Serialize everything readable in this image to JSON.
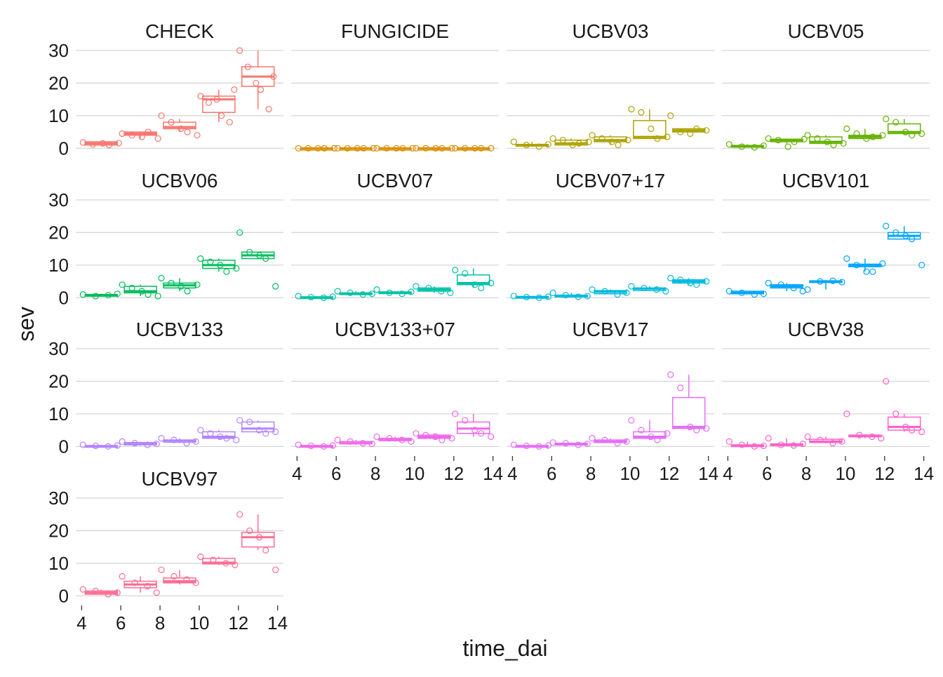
{
  "chart_data": {
    "type": "boxplot",
    "xlabel": "time_dai",
    "ylabel": "sev",
    "x_ticks": [
      4,
      6,
      8,
      10,
      12,
      14
    ],
    "y_ticks": [
      0,
      10,
      20,
      30
    ],
    "xlim": [
      3.7,
      14.3
    ],
    "ylim": [
      -2.5,
      31.5
    ],
    "grid": "horizontal",
    "legend": "none",
    "panels": [
      {
        "title": "CHECK",
        "color": "#F8766D",
        "groups": [
          {
            "x": 5,
            "min": 1,
            "q1": 1,
            "median": 1.5,
            "q3": 2,
            "max": 2,
            "points": [
              1.8,
              1.2,
              1.5,
              1.0,
              1.6
            ]
          },
          {
            "x": 7,
            "min": 3,
            "q1": 4,
            "median": 4.5,
            "q3": 5,
            "max": 5,
            "points": [
              4.5,
              4.0,
              3.5,
              5.0,
              3.0
            ]
          },
          {
            "x": 9,
            "min": 5,
            "q1": 6,
            "median": 6.5,
            "q3": 8,
            "max": 9,
            "points": [
              10,
              8,
              6,
              5,
              4
            ]
          },
          {
            "x": 11,
            "min": 8,
            "q1": 11,
            "median": 15,
            "q3": 16,
            "max": 18,
            "points": [
              16,
              14,
              15,
              10,
              8,
              18
            ]
          },
          {
            "x": 13,
            "min": 12,
            "q1": 19,
            "median": 22,
            "q3": 25,
            "max": 30,
            "points": [
              30,
              25,
              20,
              18,
              12,
              22
            ]
          }
        ]
      },
      {
        "title": "FUNGICIDE",
        "color": "#DB8E00",
        "groups": [
          {
            "x": 5,
            "min": 0,
            "q1": 0,
            "median": 0,
            "q3": 0,
            "max": 0,
            "points": [
              0,
              0,
              0,
              0,
              0
            ]
          },
          {
            "x": 7,
            "min": 0,
            "q1": 0,
            "median": 0,
            "q3": 0,
            "max": 0,
            "points": [
              0,
              0,
              0,
              0,
              0
            ]
          },
          {
            "x": 9,
            "min": 0,
            "q1": 0,
            "median": 0,
            "q3": 0,
            "max": 0,
            "points": [
              0,
              0,
              0,
              0,
              0
            ]
          },
          {
            "x": 11,
            "min": 0,
            "q1": 0,
            "median": 0,
            "q3": 0,
            "max": 0,
            "points": [
              0,
              0,
              0,
              0,
              0
            ]
          },
          {
            "x": 13,
            "min": 0,
            "q1": 0,
            "median": 0,
            "q3": 0,
            "max": 0,
            "points": [
              0,
              0,
              0,
              0,
              0
            ]
          }
        ]
      },
      {
        "title": "UCBV03",
        "color": "#AEA200",
        "groups": [
          {
            "x": 5,
            "min": 0.5,
            "q1": 0.7,
            "median": 1,
            "q3": 1.2,
            "max": 2,
            "points": [
              2,
              1,
              0.5,
              1.2
            ]
          },
          {
            "x": 7,
            "min": 1,
            "q1": 1,
            "median": 1.5,
            "q3": 2.5,
            "max": 3,
            "points": [
              3,
              2.5,
              1,
              1.5,
              2
            ]
          },
          {
            "x": 9,
            "min": 1,
            "q1": 2,
            "median": 2.5,
            "q3": 3.5,
            "max": 4,
            "points": [
              4,
              3,
              2,
              1,
              2.5
            ]
          },
          {
            "x": 11,
            "min": 3,
            "q1": 3,
            "median": 3.5,
            "q3": 8.5,
            "max": 12,
            "points": [
              12,
              11,
              6,
              3,
              3.5
            ]
          },
          {
            "x": 13,
            "min": 5,
            "q1": 5,
            "median": 5.5,
            "q3": 6,
            "max": 6,
            "points": [
              10,
              5,
              4.5,
              6,
              5.5
            ]
          }
        ]
      },
      {
        "title": "UCBV05",
        "color": "#64B200",
        "groups": [
          {
            "x": 5,
            "min": 0.3,
            "q1": 0.4,
            "median": 0.6,
            "q3": 0.9,
            "max": 1.2,
            "points": [
              1.2,
              0.5,
              0.3,
              0.8
            ]
          },
          {
            "x": 7,
            "min": 1.5,
            "q1": 2,
            "median": 2.5,
            "q3": 2.8,
            "max": 3,
            "points": [
              3,
              2.5,
              0.5,
              2,
              2.8
            ]
          },
          {
            "x": 9,
            "min": 1,
            "q1": 1.5,
            "median": 2,
            "q3": 3.5,
            "max": 4,
            "points": [
              4,
              3,
              2,
              1,
              1.5
            ]
          },
          {
            "x": 11,
            "min": 3,
            "q1": 3,
            "median": 3.5,
            "q3": 4,
            "max": 6,
            "points": [
              6,
              4.5,
              3,
              3.5,
              4
            ]
          },
          {
            "x": 13,
            "min": 4,
            "q1": 4.5,
            "median": 5,
            "q3": 7.5,
            "max": 9,
            "points": [
              9,
              8,
              5,
              4,
              4.5
            ]
          }
        ]
      },
      {
        "title": "UCBV06",
        "color": "#00BD5C",
        "groups": [
          {
            "x": 5,
            "min": 0.5,
            "q1": 0.6,
            "median": 0.8,
            "q3": 1,
            "max": 1.2,
            "points": [
              1,
              0.5,
              0.8,
              1.2
            ]
          },
          {
            "x": 7,
            "min": 0.5,
            "q1": 1.5,
            "median": 2,
            "q3": 3.5,
            "max": 4,
            "points": [
              4,
              3,
              2,
              1,
              0.5
            ]
          },
          {
            "x": 9,
            "min": 2,
            "q1": 3,
            "median": 3.8,
            "q3": 4.5,
            "max": 6,
            "points": [
              6,
              4.5,
              3.5,
              2,
              4
            ]
          },
          {
            "x": 11,
            "min": 8,
            "q1": 9,
            "median": 10,
            "q3": 11.5,
            "max": 12,
            "points": [
              12,
              11,
              10,
              8,
              9
            ]
          },
          {
            "x": 13,
            "min": 12,
            "q1": 12,
            "median": 13,
            "q3": 14,
            "max": 14,
            "points": [
              20,
              14,
              13,
              12,
              3.5
            ]
          }
        ]
      },
      {
        "title": "UCBV07",
        "color": "#00C1A7",
        "groups": [
          {
            "x": 5,
            "min": 0,
            "q1": 0,
            "median": 0,
            "q3": 0.3,
            "max": 0.5,
            "points": [
              0.5,
              0.2,
              0,
              0.3
            ]
          },
          {
            "x": 7,
            "min": 1,
            "q1": 1,
            "median": 1.2,
            "q3": 1.5,
            "max": 2,
            "points": [
              2,
              1.5,
              1,
              1.2
            ]
          },
          {
            "x": 9,
            "min": 1.2,
            "q1": 1.3,
            "median": 1.5,
            "q3": 1.8,
            "max": 2,
            "points": [
              2.5,
              1.5,
              1.2,
              1.8
            ]
          },
          {
            "x": 11,
            "min": 1.5,
            "q1": 2,
            "median": 2.5,
            "q3": 3,
            "max": 3.5,
            "points": [
              3.5,
              3,
              2,
              1.5
            ]
          },
          {
            "x": 13,
            "min": 3,
            "q1": 4,
            "median": 4.5,
            "q3": 7,
            "max": 9,
            "points": [
              8.5,
              7.5,
              4,
              3,
              4.5
            ]
          }
        ]
      },
      {
        "title": "UCBV07+17",
        "color": "#00BADE",
        "groups": [
          {
            "x": 5,
            "min": 0,
            "q1": 0,
            "median": 0.2,
            "q3": 0.4,
            "max": 0.5,
            "points": [
              0.5,
              0.2,
              0,
              0.3
            ]
          },
          {
            "x": 7,
            "min": 0.3,
            "q1": 0.4,
            "median": 0.5,
            "q3": 0.8,
            "max": 1.5,
            "points": [
              1.5,
              0.8,
              0.3,
              0.5
            ]
          },
          {
            "x": 9,
            "min": 1,
            "q1": 1.2,
            "median": 1.8,
            "q3": 2.2,
            "max": 2.5,
            "points": [
              2.5,
              2,
              1,
              1.5
            ]
          },
          {
            "x": 11,
            "min": 2,
            "q1": 2.2,
            "median": 2.8,
            "q3": 3,
            "max": 3.5,
            "points": [
              3.5,
              3,
              2.5,
              2
            ]
          },
          {
            "x": 13,
            "min": 4,
            "q1": 4.5,
            "median": 5,
            "q3": 5.5,
            "max": 6,
            "points": [
              6,
              5.5,
              4.5,
              4,
              5
            ]
          }
        ]
      },
      {
        "title": "UCBV101",
        "color": "#00A6FF",
        "groups": [
          {
            "x": 5,
            "min": 1,
            "q1": 1.2,
            "median": 1.5,
            "q3": 2,
            "max": 2,
            "points": [
              2,
              1.5,
              1,
              1.2
            ]
          },
          {
            "x": 7,
            "min": 2,
            "q1": 3,
            "median": 3.5,
            "q3": 4,
            "max": 4.5,
            "points": [
              4.5,
              4,
              3,
              2
            ]
          },
          {
            "x": 9,
            "min": 2.5,
            "q1": 5,
            "median": 5,
            "q3": 5.2,
            "max": 5.5,
            "points": [
              2.5,
              5,
              5.2,
              4.8
            ]
          },
          {
            "x": 11,
            "min": 8,
            "q1": 9.5,
            "median": 10,
            "q3": 10.3,
            "max": 12,
            "points": [
              12,
              10,
              8,
              8,
              10.5
            ]
          },
          {
            "x": 13,
            "min": 18,
            "q1": 18,
            "median": 19,
            "q3": 20,
            "max": 22,
            "points": [
              22,
              20,
              19,
              18,
              10
            ]
          }
        ]
      },
      {
        "title": "UCBV133",
        "color": "#B385FF",
        "groups": [
          {
            "x": 5,
            "min": 0,
            "q1": 0,
            "median": 0,
            "q3": 0.3,
            "max": 0.5,
            "points": [
              0.5,
              0.2,
              0,
              0.3
            ]
          },
          {
            "x": 7,
            "min": 0.3,
            "q1": 0.5,
            "median": 0.8,
            "q3": 1.2,
            "max": 1.5,
            "points": [
              1.5,
              1,
              0.5,
              0.8
            ]
          },
          {
            "x": 9,
            "min": 1,
            "q1": 1.3,
            "median": 1.8,
            "q3": 2,
            "max": 2.5,
            "points": [
              2.5,
              2,
              1,
              1.5
            ]
          },
          {
            "x": 11,
            "min": 2,
            "q1": 2.5,
            "median": 3,
            "q3": 4.5,
            "max": 5,
            "points": [
              5,
              4,
              3,
              2.5,
              2
            ]
          },
          {
            "x": 13,
            "min": 4,
            "q1": 4.5,
            "median": 5.5,
            "q3": 7.5,
            "max": 8,
            "points": [
              8,
              7.5,
              5,
              4,
              4.5
            ]
          }
        ]
      },
      {
        "title": "UCBV133+07",
        "color": "#EF67EB",
        "groups": [
          {
            "x": 5,
            "min": 0,
            "q1": 0,
            "median": 0,
            "q3": 0.3,
            "max": 0.5,
            "points": [
              0.5,
              0.2,
              0,
              0.3
            ]
          },
          {
            "x": 7,
            "min": 0.5,
            "q1": 0.8,
            "median": 1,
            "q3": 1.5,
            "max": 2,
            "points": [
              2,
              1.5,
              1,
              0.8
            ]
          },
          {
            "x": 9,
            "min": 1.5,
            "q1": 1.8,
            "median": 2,
            "q3": 2.5,
            "max": 3,
            "points": [
              3,
              2.5,
              2,
              1.5
            ]
          },
          {
            "x": 11,
            "min": 2,
            "q1": 2.5,
            "median": 3,
            "q3": 3.5,
            "max": 4,
            "points": [
              4,
              3.5,
              3,
              2,
              2.5
            ]
          },
          {
            "x": 13,
            "min": 3,
            "q1": 4,
            "median": 5.5,
            "q3": 7.5,
            "max": 10,
            "points": [
              10,
              8,
              5,
              4,
              3
            ]
          }
        ]
      },
      {
        "title": "UCBV17",
        "color": "#E46EF6",
        "groups": [
          {
            "x": 5,
            "min": 0,
            "q1": 0,
            "median": 0,
            "q3": 0.3,
            "max": 0.5,
            "points": [
              0.5,
              0.2,
              0,
              0.3
            ]
          },
          {
            "x": 7,
            "min": 0.3,
            "q1": 0.5,
            "median": 0.8,
            "q3": 1,
            "max": 1.2,
            "points": [
              1.2,
              1,
              0.5,
              0.8
            ]
          },
          {
            "x": 9,
            "min": 1,
            "q1": 1.2,
            "median": 1.5,
            "q3": 2,
            "max": 2.5,
            "points": [
              2.5,
              2,
              1,
              1.5
            ]
          },
          {
            "x": 11,
            "min": 2,
            "q1": 2.5,
            "median": 3,
            "q3": 4.5,
            "max": 8,
            "points": [
              8,
              5,
              3,
              2,
              4
            ]
          },
          {
            "x": 13,
            "min": 5,
            "q1": 5.5,
            "median": 6,
            "q3": 15,
            "max": 22,
            "points": [
              22,
              18,
              6,
              5,
              5.5
            ]
          }
        ]
      },
      {
        "title": "UCBV38",
        "color": "#FF61C9",
        "groups": [
          {
            "x": 5,
            "min": 0,
            "q1": 0,
            "median": 0.2,
            "q3": 0.5,
            "max": 1.5,
            "points": [
              1.5,
              0.5,
              0,
              0.2
            ]
          },
          {
            "x": 7,
            "min": 0.3,
            "q1": 0.4,
            "median": 0.5,
            "q3": 0.8,
            "max": 2.5,
            "points": [
              2.5,
              0.5,
              0.3,
              0.8
            ]
          },
          {
            "x": 9,
            "min": 1,
            "q1": 1.2,
            "median": 1.5,
            "q3": 2.2,
            "max": 3,
            "points": [
              3,
              2,
              1,
              1.5
            ]
          },
          {
            "x": 11,
            "min": 2.5,
            "q1": 3,
            "median": 3.2,
            "q3": 3.5,
            "max": 3.8,
            "points": [
              10,
              3.5,
              3,
              2.5
            ]
          },
          {
            "x": 13,
            "min": 4.5,
            "q1": 5,
            "median": 6,
            "q3": 9,
            "max": 10,
            "points": [
              20,
              10,
              6,
              5,
              4.5
            ]
          }
        ]
      },
      {
        "title": "UCBV97",
        "color": "#FF6C91",
        "groups": [
          {
            "x": 5,
            "min": 0.3,
            "q1": 0.5,
            "median": 1,
            "q3": 1.5,
            "max": 2,
            "points": [
              2,
              1.5,
              0.5,
              1
            ]
          },
          {
            "x": 7,
            "min": 1,
            "q1": 2.5,
            "median": 3.5,
            "q3": 4.5,
            "max": 6,
            "points": [
              6,
              4,
              3,
              1
            ]
          },
          {
            "x": 9,
            "min": 3.5,
            "q1": 4,
            "median": 4.5,
            "q3": 5.5,
            "max": 8,
            "points": [
              8,
              6,
              5,
              4
            ]
          },
          {
            "x": 11,
            "min": 9.5,
            "q1": 9.8,
            "median": 10.2,
            "q3": 11.5,
            "max": 12,
            "points": [
              12,
              11,
              10,
              9.5
            ]
          },
          {
            "x": 13,
            "min": 14,
            "q1": 15,
            "median": 18,
            "q3": 19.5,
            "max": 25,
            "points": [
              25,
              20,
              18,
              14,
              8
            ]
          }
        ]
      }
    ]
  }
}
